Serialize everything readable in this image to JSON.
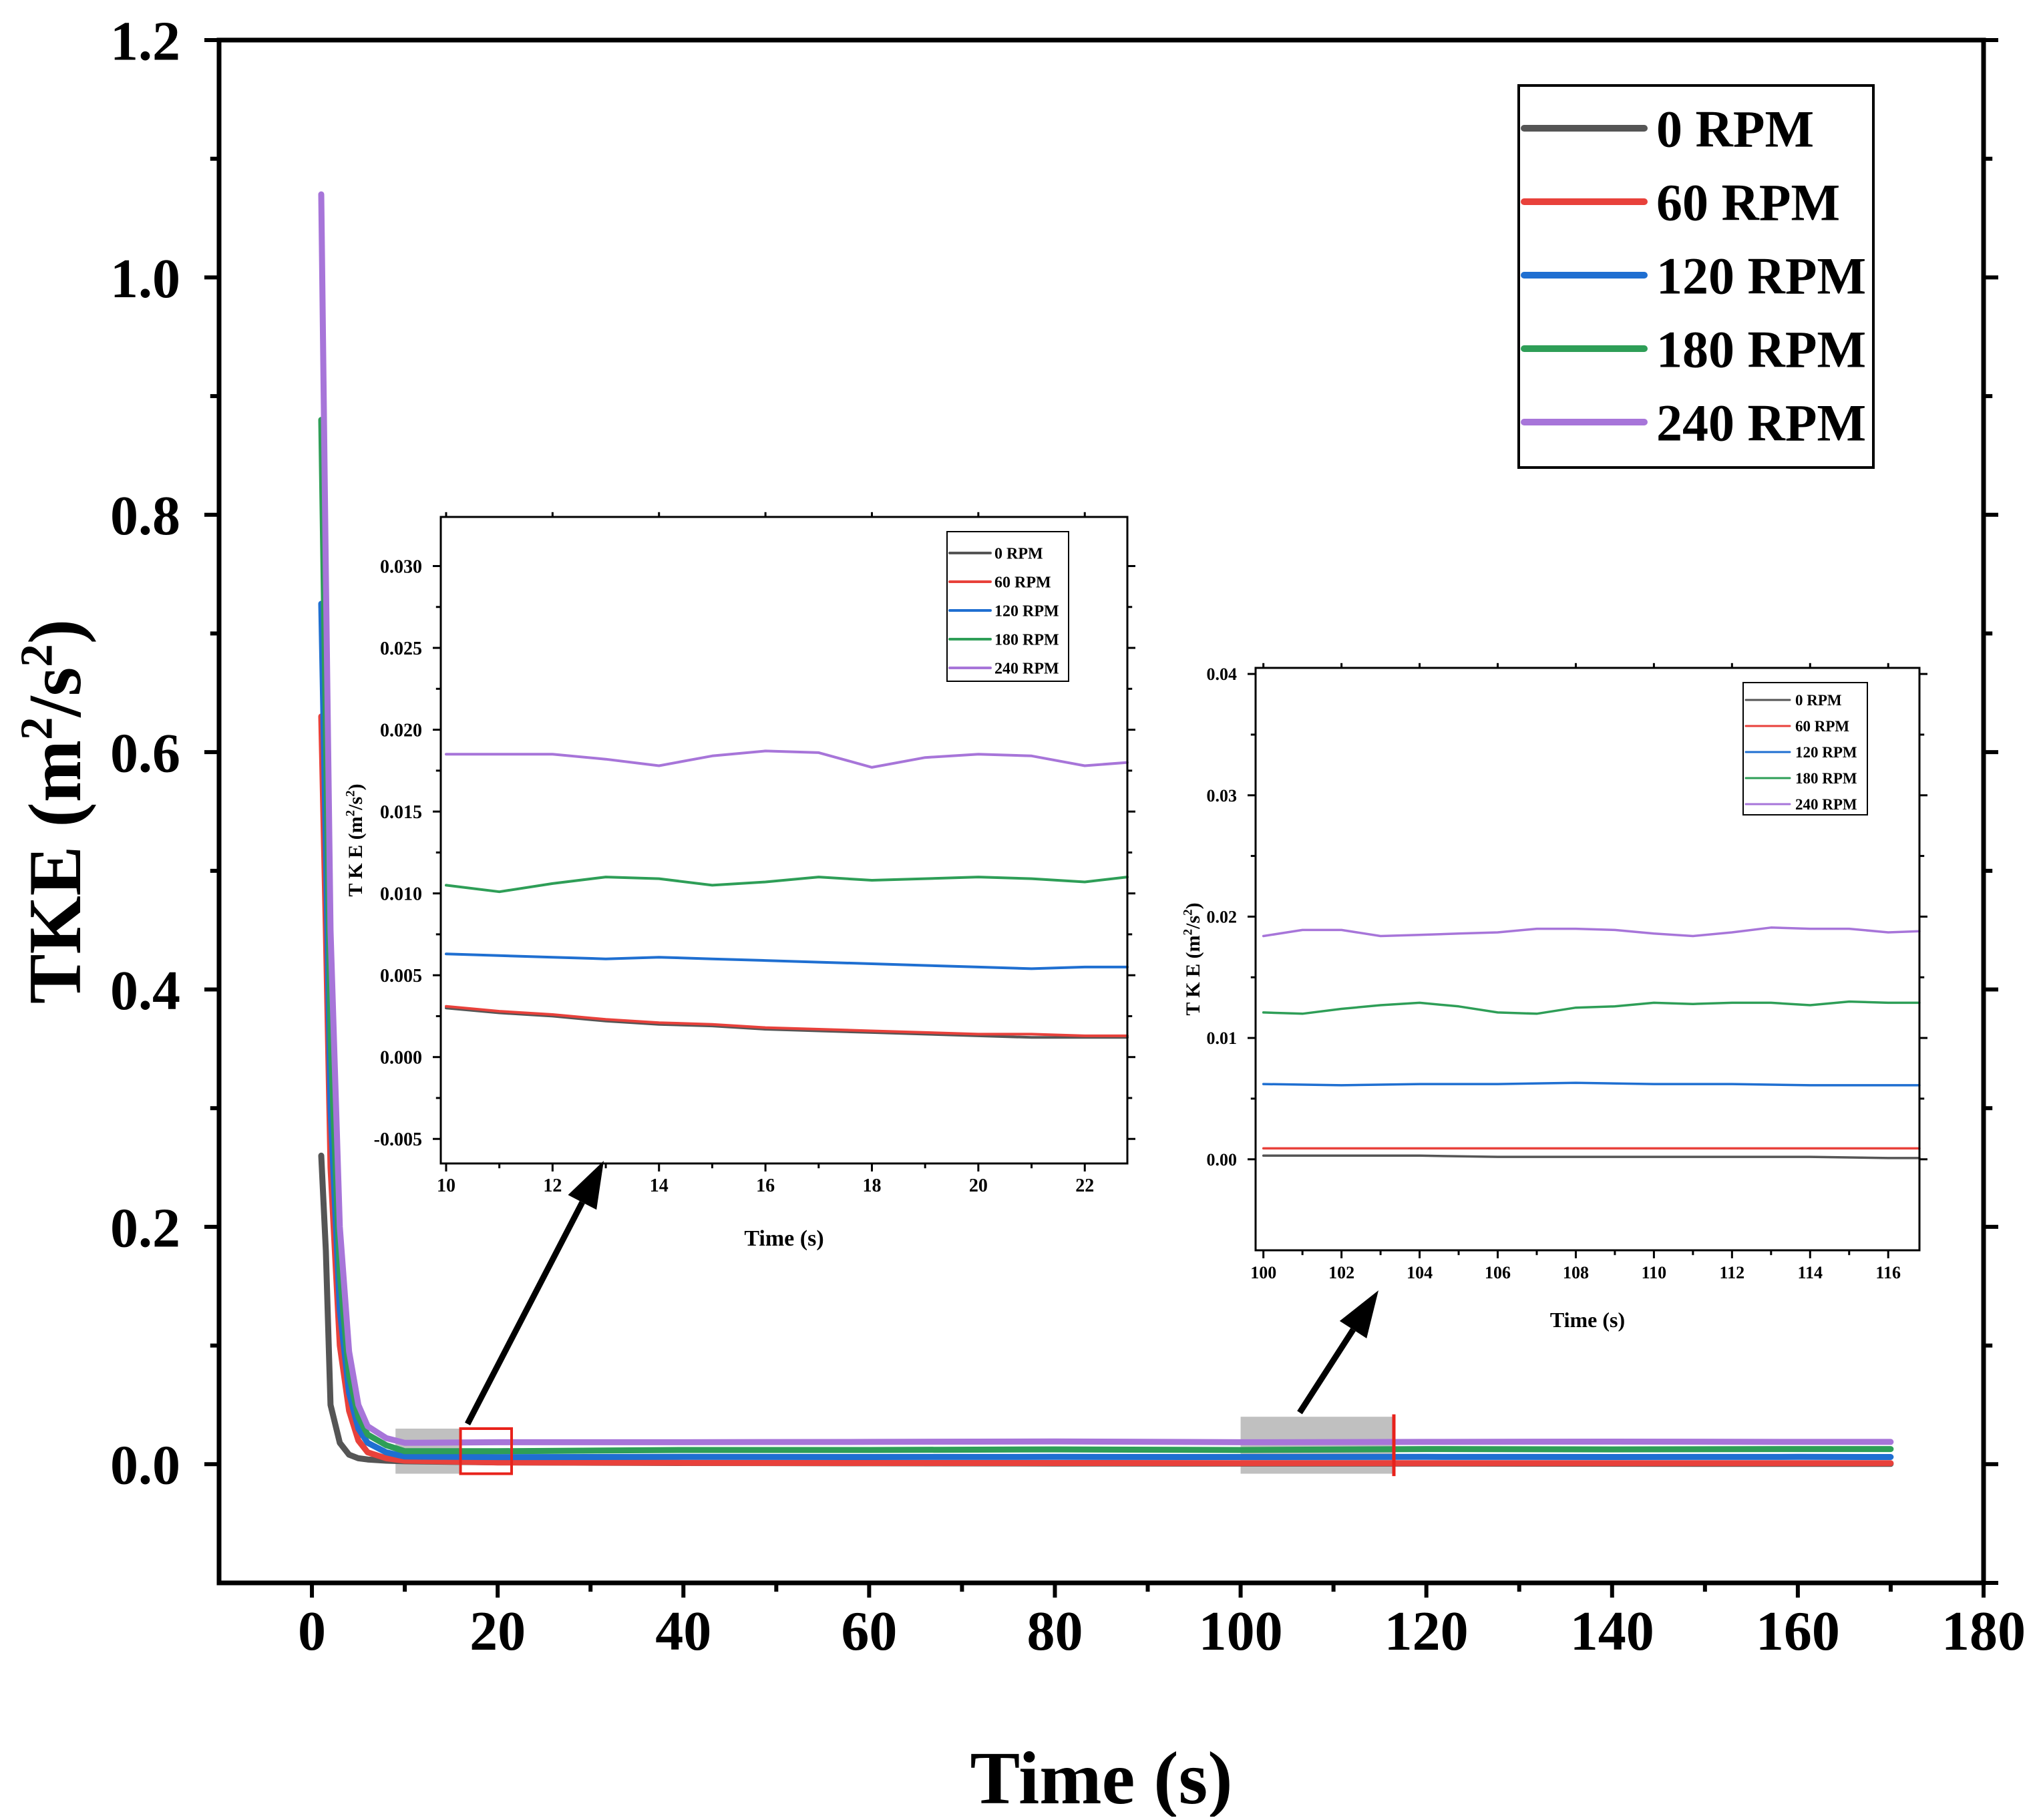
{
  "chart_data": [
    {
      "id": "main",
      "type": "line",
      "title": "",
      "xlabel": "Time (s)",
      "ylabel_main": "TKE ",
      "ylabel_unit": "(m",
      "ylabel_sup1": "2",
      "ylabel_mid": "/s",
      "ylabel_sup2": "2",
      "ylabel_close": ")",
      "xlim": [
        -10,
        180
      ],
      "ylim": [
        -0.1,
        1.2
      ],
      "xticks": [
        0,
        20,
        40,
        60,
        80,
        100,
        120,
        140,
        160,
        180
      ],
      "yticks": [
        0.0,
        0.2,
        0.4,
        0.6,
        0.8,
        1.0,
        1.2
      ],
      "ytick_labels": [
        "0.0",
        "0.2",
        "0.4",
        "0.6",
        "0.8",
        "1.0",
        "1.2"
      ],
      "legend_position": "top-right",
      "series": [
        {
          "name": "0 RPM",
          "color": "#555555",
          "x": [
            1,
            1.5,
            2,
            3,
            4,
            5,
            6,
            8,
            10,
            20,
            40,
            60,
            80,
            100,
            120,
            140,
            160,
            170
          ],
          "y": [
            0.26,
            0.18,
            0.05,
            0.018,
            0.008,
            0.005,
            0.004,
            0.003,
            0.0025,
            0.0015,
            0.001,
            0.0008,
            0.0006,
            0.0005,
            0.0005,
            0.0004,
            0.0003,
            0.0003
          ]
        },
        {
          "name": "60 RPM",
          "color": "#e8413b",
          "x": [
            1,
            1.5,
            2,
            3,
            4,
            5,
            6,
            8,
            10,
            20,
            40,
            60,
            80,
            100,
            120,
            140,
            160,
            170
          ],
          "y": [
            0.63,
            0.45,
            0.25,
            0.1,
            0.045,
            0.02,
            0.01,
            0.005,
            0.003,
            0.0015,
            0.0012,
            0.001,
            0.001,
            0.0009,
            0.0009,
            0.0009,
            0.0009,
            0.0009
          ]
        },
        {
          "name": "120 RPM",
          "color": "#1f6fd1",
          "x": [
            1,
            1.5,
            2,
            3,
            4,
            5,
            6,
            8,
            10,
            20,
            40,
            60,
            80,
            100,
            120,
            140,
            160,
            170
          ],
          "y": [
            0.725,
            0.52,
            0.3,
            0.13,
            0.06,
            0.03,
            0.018,
            0.01,
            0.0065,
            0.006,
            0.0062,
            0.0061,
            0.0062,
            0.0061,
            0.0062,
            0.0061,
            0.0062,
            0.0061
          ]
        },
        {
          "name": "180 RPM",
          "color": "#2e9e57",
          "x": [
            1,
            1.5,
            2,
            3,
            4,
            5,
            6,
            8,
            10,
            20,
            40,
            60,
            80,
            100,
            120,
            140,
            160,
            170
          ],
          "y": [
            0.88,
            0.62,
            0.36,
            0.16,
            0.075,
            0.04,
            0.025,
            0.016,
            0.011,
            0.011,
            0.012,
            0.012,
            0.0125,
            0.012,
            0.0128,
            0.0125,
            0.0128,
            0.0128
          ]
        },
        {
          "name": "240 RPM",
          "color": "#a775d9",
          "x": [
            1,
            1.5,
            2,
            3,
            4,
            5,
            6,
            8,
            10,
            20,
            40,
            60,
            80,
            100,
            120,
            140,
            160,
            170
          ],
          "y": [
            1.07,
            0.75,
            0.45,
            0.2,
            0.095,
            0.05,
            0.032,
            0.022,
            0.018,
            0.0185,
            0.0185,
            0.0188,
            0.0192,
            0.0185,
            0.0188,
            0.019,
            0.0188,
            0.0188
          ]
        }
      ],
      "highlight_regions": [
        {
          "kind": "gray-box",
          "x": [
            9,
            16
          ],
          "y": [
            -0.008,
            0.03
          ]
        },
        {
          "kind": "red-box",
          "x": [
            16,
            21.5
          ],
          "y": [
            -0.008,
            0.03
          ]
        },
        {
          "kind": "gray-box",
          "x": [
            100,
            116.5
          ],
          "y": [
            -0.008,
            0.04
          ]
        },
        {
          "kind": "red-line",
          "x": 116.5,
          "y": [
            -0.01,
            0.042
          ]
        }
      ]
    },
    {
      "id": "inset1",
      "type": "line",
      "title": "",
      "xlabel": "Time (s)",
      "ylabel_main": "T K E ",
      "ylabel_unit": "(m",
      "ylabel_sup1": "2",
      "ylabel_mid": "/s",
      "ylabel_sup2": "2",
      "ylabel_close": ")",
      "xlim": [
        9.9,
        22.8
      ],
      "ylim": [
        -0.0065,
        0.033
      ],
      "xticks": [
        10,
        12,
        14,
        16,
        18,
        20,
        22
      ],
      "yticks": [
        -0.005,
        0.0,
        0.005,
        0.01,
        0.015,
        0.02,
        0.025,
        0.03
      ],
      "ytick_labels": [
        "-0.005",
        "0.000",
        "0.005",
        "0.010",
        "0.015",
        "0.020",
        "0.025",
        "0.030"
      ],
      "legend_position": "top-right",
      "series": [
        {
          "name": "0 RPM",
          "color": "#555555",
          "x": [
            10,
            11,
            12,
            13,
            14,
            15,
            16,
            17,
            18,
            19,
            20,
            21,
            22,
            22.8
          ],
          "y": [
            0.003,
            0.0027,
            0.0025,
            0.0022,
            0.002,
            0.0019,
            0.0017,
            0.0016,
            0.0015,
            0.0014,
            0.0013,
            0.0012,
            0.0012,
            0.0012
          ]
        },
        {
          "name": "60 RPM",
          "color": "#e8413b",
          "x": [
            10,
            11,
            12,
            13,
            14,
            15,
            16,
            17,
            18,
            19,
            20,
            21,
            22,
            22.8
          ],
          "y": [
            0.0031,
            0.0028,
            0.0026,
            0.0023,
            0.0021,
            0.002,
            0.0018,
            0.0017,
            0.0016,
            0.0015,
            0.0014,
            0.0014,
            0.0013,
            0.0013
          ]
        },
        {
          "name": "120 RPM",
          "color": "#1f6fd1",
          "x": [
            10,
            11,
            12,
            13,
            14,
            15,
            16,
            17,
            18,
            19,
            20,
            21,
            22,
            22.8
          ],
          "y": [
            0.0063,
            0.0062,
            0.0061,
            0.006,
            0.0061,
            0.006,
            0.0059,
            0.0058,
            0.0057,
            0.0056,
            0.0055,
            0.0054,
            0.0055,
            0.0055
          ]
        },
        {
          "name": "180 RPM",
          "color": "#2e9e57",
          "x": [
            10,
            11,
            12,
            13,
            14,
            15,
            16,
            17,
            18,
            19,
            20,
            21,
            22,
            22.8
          ],
          "y": [
            0.0105,
            0.0101,
            0.0106,
            0.011,
            0.0109,
            0.0105,
            0.0107,
            0.011,
            0.0108,
            0.0109,
            0.011,
            0.0109,
            0.0107,
            0.011
          ]
        },
        {
          "name": "240 RPM",
          "color": "#a775d9",
          "x": [
            10,
            11,
            12,
            13,
            14,
            15,
            16,
            17,
            18,
            19,
            20,
            21,
            22,
            22.8
          ],
          "y": [
            0.0185,
            0.0185,
            0.0185,
            0.0182,
            0.0178,
            0.0184,
            0.0187,
            0.0186,
            0.0177,
            0.0183,
            0.0185,
            0.0184,
            0.0178,
            0.018
          ]
        }
      ]
    },
    {
      "id": "inset2",
      "type": "line",
      "title": "",
      "xlabel": "Time (s)",
      "ylabel_main": "T K E ",
      "ylabel_unit": "(m",
      "ylabel_sup1": "2",
      "ylabel_mid": "/s",
      "ylabel_sup2": "2",
      "ylabel_close": ")",
      "xlim": [
        99.8,
        116.8
      ],
      "ylim": [
        -0.0075,
        0.0405
      ],
      "xticks": [
        100,
        102,
        104,
        106,
        108,
        110,
        112,
        114,
        116
      ],
      "yticks": [
        0.0,
        0.01,
        0.02,
        0.03,
        0.04
      ],
      "ytick_labels": [
        "0.00",
        "0.01",
        "0.02",
        "0.03",
        "0.04"
      ],
      "legend_position": "top-right",
      "series": [
        {
          "name": "0 RPM",
          "color": "#555555",
          "x": [
            100,
            102,
            104,
            106,
            108,
            110,
            112,
            114,
            116,
            116.8
          ],
          "y": [
            0.0003,
            0.0003,
            0.0003,
            0.0002,
            0.0002,
            0.0002,
            0.0002,
            0.0002,
            0.0001,
            0.0001
          ]
        },
        {
          "name": "60 RPM",
          "color": "#e8413b",
          "x": [
            100,
            102,
            104,
            106,
            108,
            110,
            112,
            114,
            116,
            116.8
          ],
          "y": [
            0.0009,
            0.0009,
            0.0009,
            0.0009,
            0.0009,
            0.0009,
            0.0009,
            0.0009,
            0.0009,
            0.0009
          ]
        },
        {
          "name": "120 RPM",
          "color": "#1f6fd1",
          "x": [
            100,
            102,
            104,
            106,
            108,
            110,
            112,
            114,
            116,
            116.8
          ],
          "y": [
            0.0062,
            0.0061,
            0.0062,
            0.0062,
            0.0063,
            0.0062,
            0.0062,
            0.0061,
            0.0061,
            0.0061
          ]
        },
        {
          "name": "180 RPM",
          "color": "#2e9e57",
          "x": [
            100,
            101,
            102,
            103,
            104,
            105,
            106,
            107,
            108,
            109,
            110,
            111,
            112,
            113,
            114,
            115,
            116,
            116.8
          ],
          "y": [
            0.0121,
            0.012,
            0.0124,
            0.0127,
            0.0129,
            0.0126,
            0.0121,
            0.012,
            0.0125,
            0.0126,
            0.0129,
            0.0128,
            0.0129,
            0.0129,
            0.0127,
            0.013,
            0.0129,
            0.0129
          ]
        },
        {
          "name": "240 RPM",
          "color": "#a775d9",
          "x": [
            100,
            101,
            102,
            103,
            104,
            105,
            106,
            107,
            108,
            109,
            110,
            111,
            112,
            113,
            114,
            115,
            116,
            116.8
          ],
          "y": [
            0.0184,
            0.0189,
            0.0189,
            0.0184,
            0.0185,
            0.0186,
            0.0187,
            0.019,
            0.019,
            0.0189,
            0.0186,
            0.0184,
            0.0187,
            0.0191,
            0.019,
            0.019,
            0.0187,
            0.0188
          ]
        }
      ]
    }
  ]
}
